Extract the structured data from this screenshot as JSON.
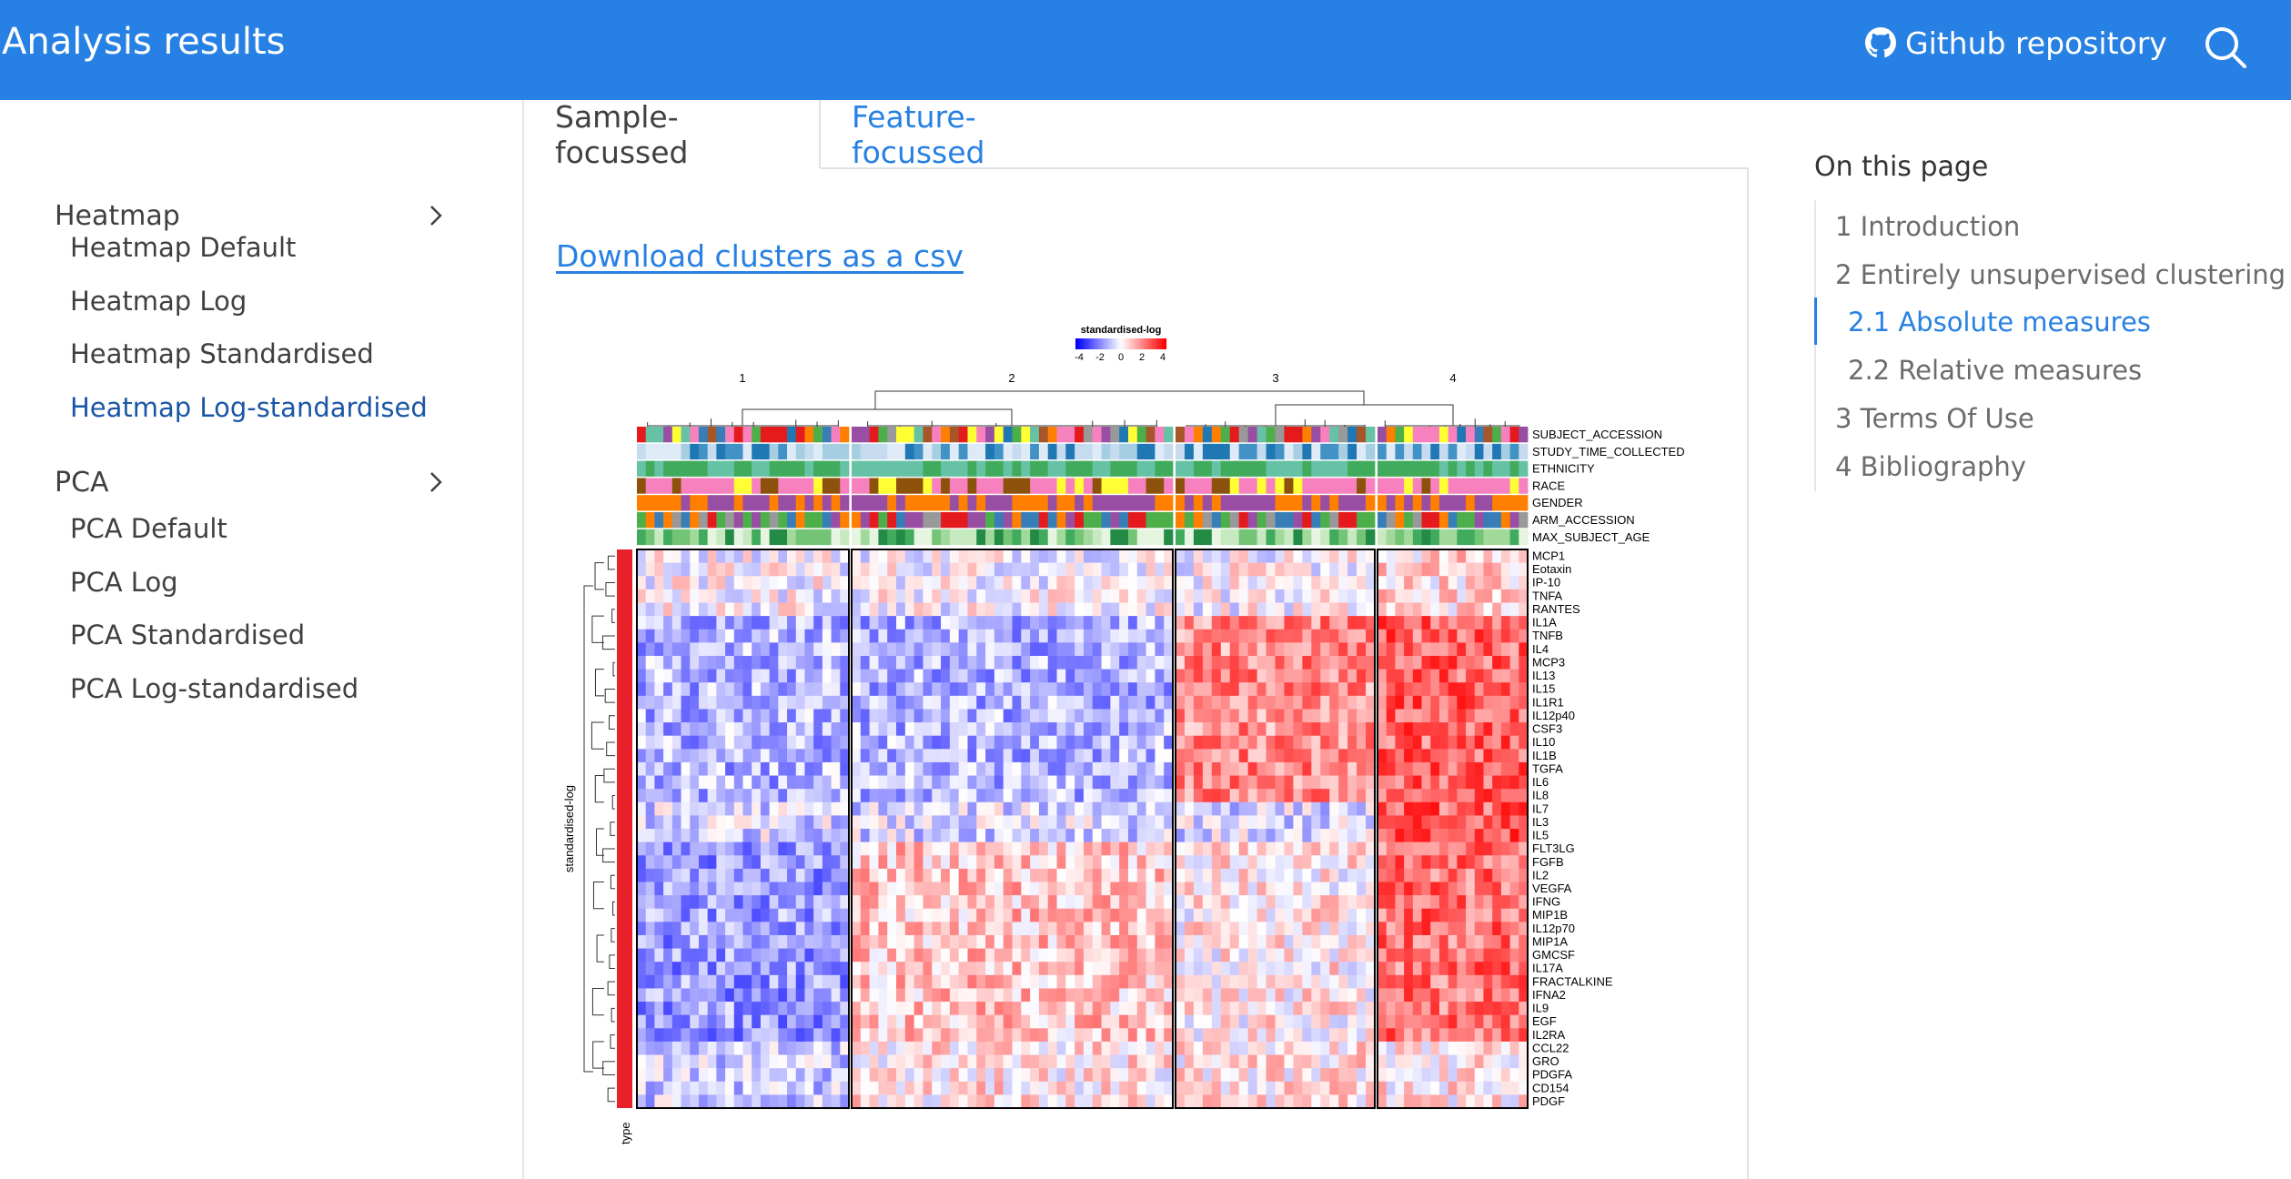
{
  "header": {
    "title": "Analysis results",
    "github_label": "Github repository"
  },
  "sidebar": {
    "sections": [
      {
        "label": "Heatmap",
        "items": [
          "Heatmap Default",
          "Heatmap Log",
          "Heatmap Standardised",
          "Heatmap Log-standardised"
        ],
        "active": "Heatmap Log-standardised"
      },
      {
        "label": "PCA",
        "items": [
          "PCA Default",
          "PCA Log",
          "PCA Standardised",
          "PCA Log-standardised"
        ]
      }
    ]
  },
  "tabs": [
    {
      "label": "Sample-focussed",
      "active": true
    },
    {
      "label": "Feature-focussed",
      "active": false
    }
  ],
  "download_link": "Download clusters as a csv",
  "toc": {
    "title": "On this page",
    "items": [
      {
        "label": "1 Introduction"
      },
      {
        "label": "2 Entirely unsupervised clustering"
      },
      {
        "label": "2.1 Absolute measures",
        "active": true
      },
      {
        "label": "2.2 Relative measures"
      },
      {
        "label": "3 Terms Of Use"
      },
      {
        "label": "4 Bibliography"
      }
    ]
  },
  "colors": {
    "brand": "#2780e3",
    "active_nav": "#1a56a6",
    "heat_low": "#0000ff",
    "heat_mid": "#ffffff",
    "heat_high": "#ff0000",
    "row_annotation": "#e8202a"
  },
  "chart_data": {
    "type": "heatmap",
    "legend_title": "standardised-log",
    "legend_ticks": [
      "-4",
      "-2",
      "0",
      "2",
      "4"
    ],
    "column_clusters": [
      "1",
      "2",
      "3",
      "4"
    ],
    "column_annotations": [
      "SUBJECT_ACCESSION",
      "STUDY_TIME_COLLECTED",
      "ETHNICITY",
      "RACE",
      "GENDER",
      "ARM_ACCESSION",
      "MAX_SUBJECT_AGE"
    ],
    "rows": [
      "MCP1",
      "Eotaxin",
      "IP-10",
      "TNFA",
      "RANTES",
      "IL1A",
      "TNFB",
      "IL4",
      "MCP3",
      "IL13",
      "IL15",
      "IL1R1",
      "IL12p40",
      "CSF3",
      "IL10",
      "IL1B",
      "TGFA",
      "IL6",
      "IL8",
      "IL7",
      "IL3",
      "IL5",
      "FLT3LG",
      "FGFB",
      "IL2",
      "VEGFA",
      "IFNG",
      "MIP1B",
      "IL12p70",
      "MIP1A",
      "GMCSF",
      "IL17A",
      "FRACTALKINE",
      "IFNA2",
      "IL9",
      "EGF",
      "IL2RA",
      "CCL22",
      "GRO",
      "PDGFA",
      "CD154",
      "PDGF"
    ],
    "row_axis_label": "standardised-log",
    "row_annotation_label": "type",
    "value_range": [
      -4,
      4
    ]
  }
}
